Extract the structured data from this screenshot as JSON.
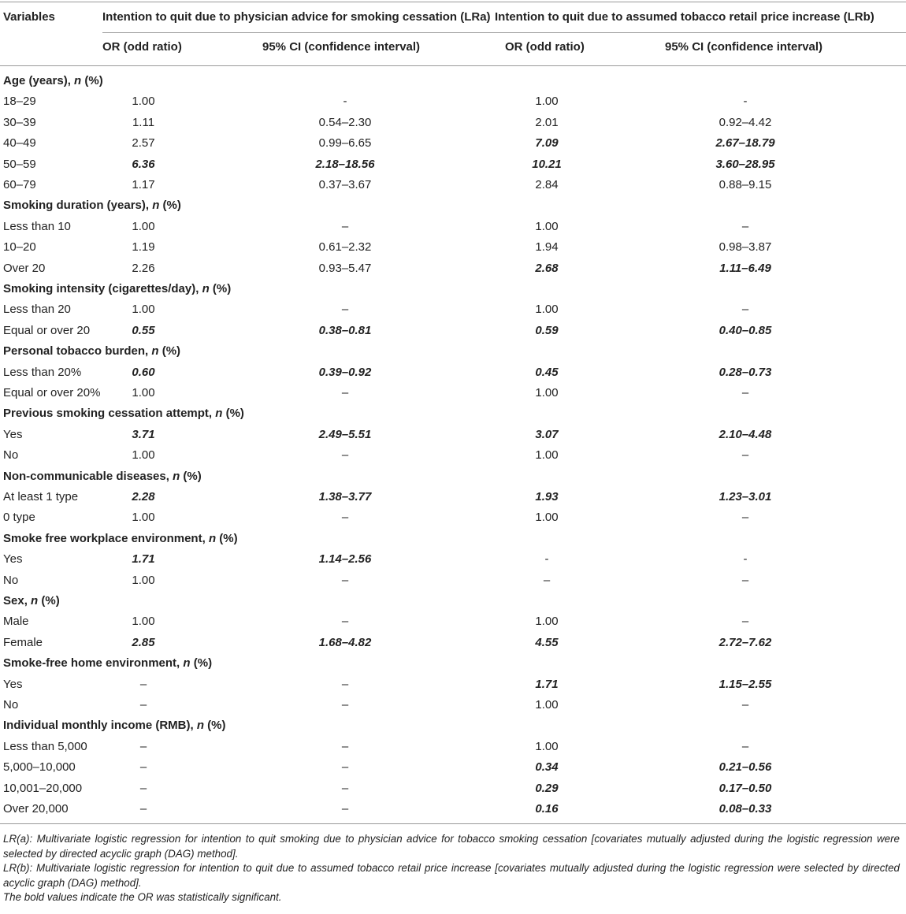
{
  "table": {
    "header": {
      "variables": "Variables",
      "groups": [
        "Intention to quit due to physician advice for smoking cessation (LRa)",
        "Intention to quit due to assumed tobacco retail price increase (LRb)"
      ],
      "columns": [
        "OR (odd ratio)",
        "95% CI (confidence interval)",
        "OR (odd ratio)",
        "95% CI (confidence interval)"
      ]
    },
    "sections": [
      {
        "label": "Age (years), n (%)",
        "rows": [
          [
            "18–29",
            "1.00",
            "-",
            "1.00",
            "-"
          ],
          [
            "30–39",
            "1.11",
            "0.54–2.30",
            "2.01",
            "0.92–4.42"
          ],
          [
            "40–49",
            "2.57",
            "0.99–6.65",
            {
              "text": "7.09",
              "bold": true
            },
            {
              "text": "2.67–18.79",
              "bold": true
            }
          ],
          [
            "50–59",
            {
              "text": "6.36",
              "bold": true
            },
            {
              "text": "2.18–18.56",
              "bold": true
            },
            {
              "text": "10.21",
              "bold": true
            },
            {
              "text": "3.60–28.95",
              "bold": true
            }
          ],
          [
            "60–79",
            "1.17",
            "0.37–3.67",
            "2.84",
            "0.88–9.15"
          ]
        ]
      },
      {
        "label": "Smoking duration (years), n (%)",
        "rows": [
          [
            "Less than 10",
            "1.00",
            "–",
            "1.00",
            "–"
          ],
          [
            "10–20",
            "1.19",
            "0.61–2.32",
            "1.94",
            "0.98–3.87"
          ],
          [
            "Over 20",
            "2.26",
            "0.93–5.47",
            {
              "text": "2.68",
              "bold": true
            },
            {
              "text": "1.11–6.49",
              "bold": true
            }
          ]
        ]
      },
      {
        "label": "Smoking intensity (cigarettes/day), n (%)",
        "rows": [
          [
            "Less than 20",
            "1.00",
            "–",
            "1.00",
            "–"
          ],
          [
            "Equal or over 20",
            {
              "text": "0.55",
              "bold": true
            },
            {
              "text": "0.38–0.81",
              "bold": true
            },
            {
              "text": "0.59",
              "bold": true
            },
            {
              "text": "0.40–0.85",
              "bold": true
            }
          ]
        ]
      },
      {
        "label": "Personal tobacco burden, n (%)",
        "rows": [
          [
            "Less than 20%",
            {
              "text": "0.60",
              "bold": true
            },
            {
              "text": "0.39–0.92",
              "bold": true
            },
            {
              "text": "0.45",
              "bold": true
            },
            {
              "text": "0.28–0.73",
              "bold": true
            }
          ],
          [
            "Equal or over 20%",
            "1.00",
            "–",
            "1.00",
            "–"
          ]
        ]
      },
      {
        "label": "Previous smoking cessation attempt, n (%)",
        "rows": [
          [
            "Yes",
            {
              "text": "3.71",
              "bold": true
            },
            {
              "text": "2.49–5.51",
              "bold": true
            },
            {
              "text": "3.07",
              "bold": true
            },
            {
              "text": "2.10–4.48",
              "bold": true
            }
          ],
          [
            "No",
            "1.00",
            "–",
            "1.00",
            "–"
          ]
        ]
      },
      {
        "label": "Non-communicable diseases, n (%)",
        "rows": [
          [
            "At least 1 type",
            {
              "text": "2.28",
              "bold": true
            },
            {
              "text": "1.38–3.77",
              "bold": true
            },
            {
              "text": "1.93",
              "bold": true
            },
            {
              "text": "1.23–3.01",
              "bold": true
            }
          ],
          [
            "0 type",
            "1.00",
            "–",
            "1.00",
            "–"
          ]
        ]
      },
      {
        "label": "Smoke free workplace environment, n (%)",
        "rows": [
          [
            "Yes",
            {
              "text": "1.71",
              "bold": true
            },
            {
              "text": "1.14–2.56",
              "bold": true
            },
            "-",
            "-"
          ],
          [
            "No",
            "1.00",
            "–",
            "–",
            "–"
          ]
        ]
      },
      {
        "label": "Sex, n (%)",
        "rows": [
          [
            "Male",
            "1.00",
            "–",
            "1.00",
            "–"
          ],
          [
            "Female",
            {
              "text": "2.85",
              "bold": true
            },
            {
              "text": "1.68–4.82",
              "bold": true
            },
            {
              "text": "4.55",
              "bold": true
            },
            {
              "text": "2.72–7.62",
              "bold": true
            }
          ]
        ]
      },
      {
        "label": "Smoke-free home environment, n (%)",
        "rows": [
          [
            "Yes",
            "–",
            "–",
            {
              "text": "1.71",
              "bold": true
            },
            {
              "text": "1.15–2.55",
              "bold": true
            }
          ],
          [
            "No",
            "–",
            "–",
            "1.00",
            "–"
          ]
        ]
      },
      {
        "label": "Individual monthly income (RMB), n (%)",
        "rows": [
          [
            "Less than 5,000",
            "–",
            "–",
            "1.00",
            "–"
          ],
          [
            "5,000–10,000",
            "–",
            "–",
            {
              "text": "0.34",
              "bold": true
            },
            {
              "text": "0.21–0.56",
              "bold": true
            }
          ],
          [
            "10,001–20,000",
            "–",
            "–",
            {
              "text": "0.29",
              "bold": true
            },
            {
              "text": "0.17–0.50",
              "bold": true
            }
          ],
          [
            "Over 20,000",
            "–",
            "–",
            {
              "text": "0.16",
              "bold": true
            },
            {
              "text": "0.08–0.33",
              "bold": true
            }
          ]
        ]
      }
    ],
    "footnotes": [
      "LR(a): Multivariate logistic regression for intention to quit smoking due to physician advice for tobacco smoking cessation [covariates mutually adjusted during the logistic regression were selected by directed acyclic graph (DAG) method].",
      "LR(b): Multivariate logistic regression for intention to quit due to assumed tobacco retail price increase [covariates mutually adjusted during the logistic regression were selected by directed acyclic graph (DAG) method].",
      "The bold values indicate the OR was statistically significant."
    ]
  }
}
